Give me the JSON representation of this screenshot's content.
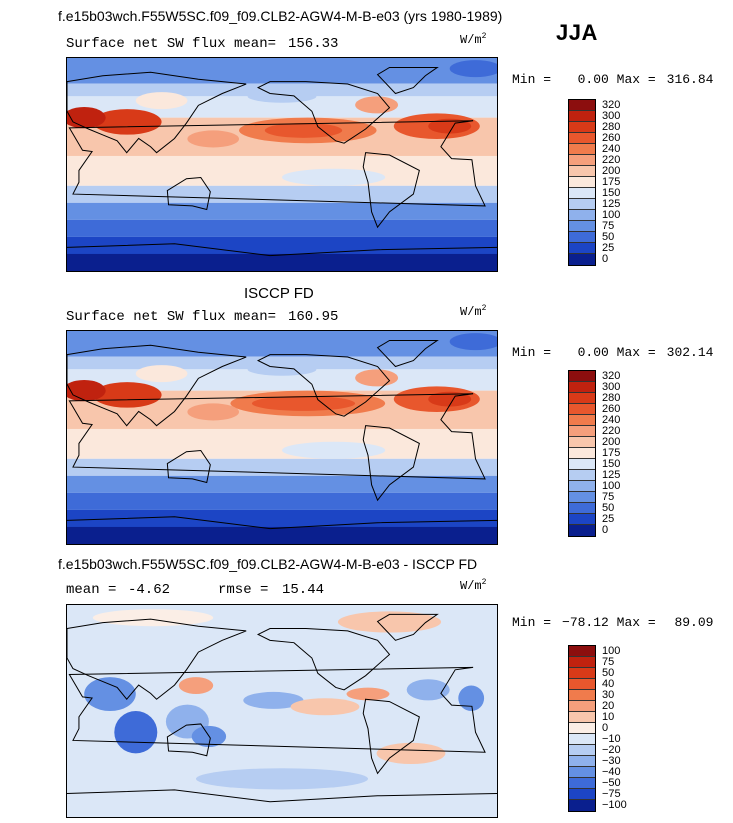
{
  "header": {
    "title": "f.e15b03wch.F55W5SC.f09_f09.CLB2-AGW4-M-B-e03 (yrs 1980-1989)",
    "season": "JJA"
  },
  "chart_data": [
    {
      "type": "heatmap",
      "panel": "model",
      "subtitle": "Surface net SW flux",
      "mean_label": "mean=",
      "mean": "156.33",
      "units_base": "W/m",
      "units_exp": "2",
      "min_label": "Min =",
      "min": "0.00",
      "max_label": "Max =",
      "max": "316.84",
      "levels": [
        "320",
        "300",
        "280",
        "260",
        "240",
        "220",
        "200",
        "175",
        "150",
        "125",
        "100",
        "75",
        "50",
        "25",
        "0"
      ],
      "colors": [
        "#8c0e0e",
        "#c0220f",
        "#d83a18",
        "#e8572d",
        "#f07b4c",
        "#f59f7c",
        "#f8c6ac",
        "#fbe8dc",
        "#dbe7f7",
        "#b6cdf2",
        "#8fb1ec",
        "#6490e3",
        "#3e6bd8",
        "#1c45c5",
        "#0a1f8e"
      ],
      "projection": "cylindrical equidistant, 0E centered on Pacific (lon 30E to 390E)"
    },
    {
      "type": "heatmap",
      "panel": "observations",
      "title": "ISCCP FD",
      "subtitle": "Surface net SW flux",
      "mean_label": "mean=",
      "mean": "160.95",
      "units_base": "W/m",
      "units_exp": "2",
      "min_label": "Min =",
      "min": "0.00",
      "max_label": "Max =",
      "max": "302.14",
      "levels": [
        "320",
        "300",
        "280",
        "260",
        "240",
        "220",
        "200",
        "175",
        "150",
        "125",
        "100",
        "75",
        "50",
        "25",
        "0"
      ],
      "colors": [
        "#8c0e0e",
        "#c0220f",
        "#d83a18",
        "#e8572d",
        "#f07b4c",
        "#f59f7c",
        "#f8c6ac",
        "#fbe8dc",
        "#dbe7f7",
        "#b6cdf2",
        "#8fb1ec",
        "#6490e3",
        "#3e6bd8",
        "#1c45c5",
        "#0a1f8e"
      ]
    },
    {
      "type": "heatmap",
      "panel": "difference",
      "title": "f.e15b03wch.F55W5SC.f09_f09.CLB2-AGW4-M-B-e03 - ISCCP FD",
      "mean_label": "mean =",
      "mean": "-4.62",
      "rmse_label": "rmse =",
      "rmse": "15.44",
      "units_base": "W/m",
      "units_exp": "2",
      "min_label": "Min =",
      "min": "−78.12",
      "max_label": "Max =",
      "max": "89.09",
      "levels": [
        "100",
        "75",
        "50",
        "40",
        "30",
        "20",
        "10",
        "0",
        "−10",
        "−20",
        "−30",
        "−40",
        "−50",
        "−75",
        "−100"
      ],
      "colors": [
        "#8c0e0e",
        "#c0220f",
        "#d83a18",
        "#e8572d",
        "#f07b4c",
        "#f59f7c",
        "#f8c6ac",
        "#fbeee6",
        "#dbe7f7",
        "#b6cdf2",
        "#8fb1ec",
        "#6490e3",
        "#3e6bd8",
        "#1c45c5",
        "#0a1f8e"
      ]
    }
  ]
}
